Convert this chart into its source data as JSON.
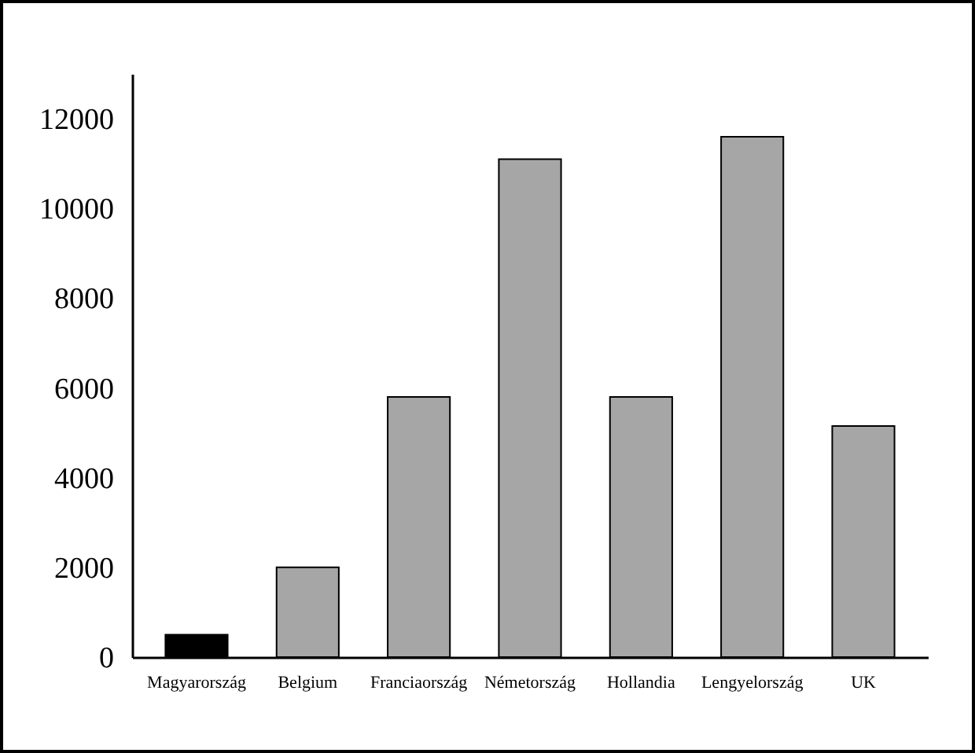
{
  "chart_data": {
    "type": "bar",
    "categories": [
      "Magyarország",
      "Belgium",
      "Franciaország",
      "Németország",
      "Hollandia",
      "Lengyelország",
      "UK"
    ],
    "values": [
      500,
      2000,
      5800,
      11100,
      5800,
      11600,
      5150
    ],
    "colors": [
      "#000000",
      "#a6a6a6",
      "#a6a6a6",
      "#a6a6a6",
      "#a6a6a6",
      "#a6a6a6",
      "#a6a6a6"
    ],
    "ylim": [
      0,
      13000
    ],
    "yticks": [
      0,
      2000,
      4000,
      6000,
      8000,
      10000,
      12000
    ],
    "grid": false
  }
}
